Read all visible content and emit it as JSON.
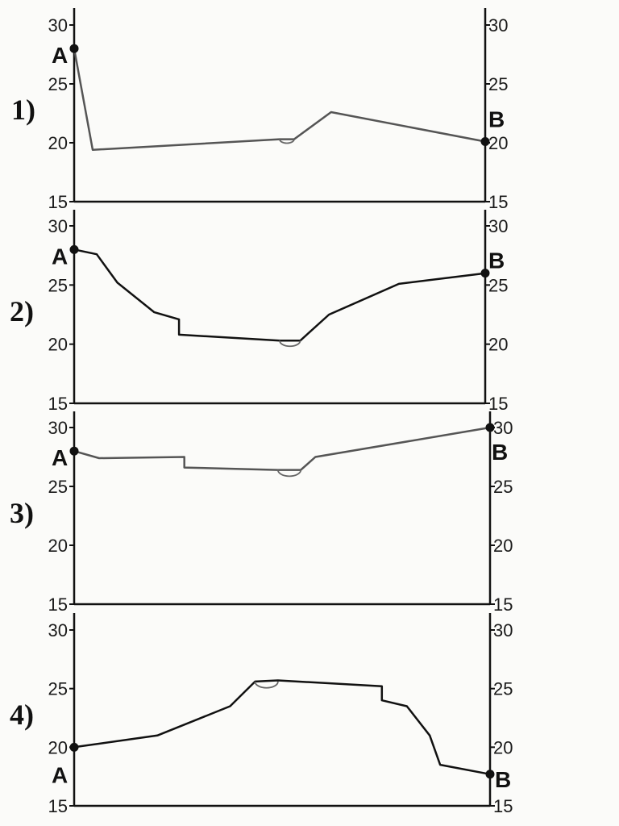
{
  "chart_data": [
    {
      "type": "line",
      "number_label": "1)",
      "ylim": [
        15,
        31
      ],
      "yticks": [
        15,
        20,
        25,
        30
      ],
      "x": [
        0,
        0.045,
        0.5,
        0.535,
        0.625,
        1
      ],
      "values": [
        28,
        19.4,
        20.3,
        20.3,
        22.6,
        20.1
      ],
      "arc_between": [
        0.5,
        0.535
      ],
      "start_label": "A",
      "end_label": "B",
      "line_color": "#555555"
    },
    {
      "type": "line",
      "number_label": "2)",
      "ylim": [
        15,
        31
      ],
      "yticks": [
        15,
        20,
        25,
        30
      ],
      "x": [
        0,
        0.055,
        0.105,
        0.195,
        0.255,
        0.255,
        0.5,
        0.55,
        0.62,
        0.79,
        1
      ],
      "values": [
        28,
        27.6,
        25.2,
        22.7,
        22.1,
        20.8,
        20.3,
        20.3,
        22.5,
        25.1,
        26
      ],
      "arc_between": [
        0.5,
        0.55
      ],
      "start_label": "A",
      "end_label": "B",
      "line_color": "#111111"
    },
    {
      "type": "line",
      "number_label": "3)",
      "ylim": [
        15,
        31
      ],
      "yticks": [
        15,
        20,
        25,
        30
      ],
      "x": [
        0,
        0.06,
        0.265,
        0.265,
        0.49,
        0.545,
        0.58,
        1
      ],
      "values": [
        28,
        27.4,
        27.5,
        26.6,
        26.4,
        26.4,
        27.5,
        30
      ],
      "arc_between": [
        0.49,
        0.545
      ],
      "start_label": "A",
      "end_label": "B",
      "line_color": "#555555"
    },
    {
      "type": "line",
      "number_label": "4)",
      "ylim": [
        15,
        31
      ],
      "yticks": [
        15,
        20,
        25,
        30
      ],
      "x": [
        0,
        0.2,
        0.375,
        0.435,
        0.49,
        0.74,
        0.74,
        0.8,
        0.855,
        0.88,
        1
      ],
      "values": [
        20,
        21,
        23.5,
        25.6,
        25.7,
        25.2,
        24,
        23.5,
        21,
        18.5,
        17.7
      ],
      "arc_between": [
        0.435,
        0.49
      ],
      "start_label": "A",
      "end_label": "B",
      "line_color": "#111111"
    }
  ],
  "colors": {
    "axis": "#111111",
    "marker": "#111111",
    "background": "#fbfbf9"
  }
}
